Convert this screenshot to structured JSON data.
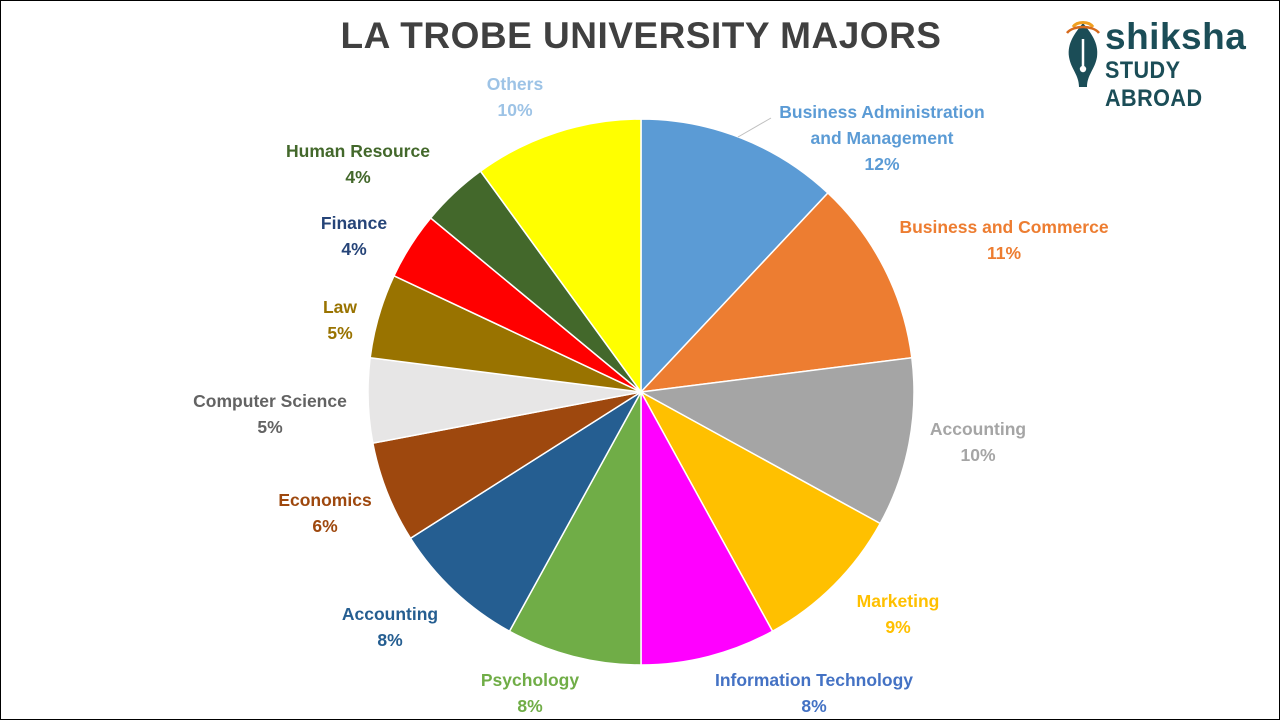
{
  "title": "LA TROBE UNIVERSITY MAJORS",
  "logo": {
    "brand": "shiksha",
    "subtitle": "STUDY ABROAD",
    "color": "#1b4d57"
  },
  "chart_data": {
    "type": "pie",
    "title": "LA TROBE UNIVERSITY MAJORS",
    "start": "12 o'clock",
    "direction": "clockwise",
    "legend": "none",
    "slices": [
      {
        "label": "Business Administration and Management",
        "label_lines": [
          "Business Administration",
          "and Management"
        ],
        "value": 12,
        "pct_text": "12%",
        "color": "#5b9bd5",
        "label_color": "#5b9bd5"
      },
      {
        "label": "Business and Commerce",
        "label_lines": [
          "Business and Commerce"
        ],
        "value": 11,
        "pct_text": "11%",
        "color": "#ed7d31",
        "label_color": "#ed7d31"
      },
      {
        "label": "Accounting",
        "label_lines": [
          "Accounting"
        ],
        "value": 10,
        "pct_text": "10%",
        "color": "#a5a5a5",
        "label_color": "#a5a5a5"
      },
      {
        "label": "Marketing",
        "label_lines": [
          "Marketing"
        ],
        "value": 9,
        "pct_text": "9%",
        "color": "#ffc000",
        "label_color": "#ffc000"
      },
      {
        "label": "Information Technology",
        "label_lines": [
          "Information Technology"
        ],
        "value": 8,
        "pct_text": "8%",
        "color": "#ff00ff",
        "label_color": "#4472c4"
      },
      {
        "label": "Psychology",
        "label_lines": [
          "Psychology"
        ],
        "value": 8,
        "pct_text": "8%",
        "color": "#70ad47",
        "label_color": "#70ad47"
      },
      {
        "label": "Accounting",
        "label_lines": [
          "Accounting"
        ],
        "value": 8,
        "pct_text": "8%",
        "color": "#255e91",
        "label_color": "#255e91"
      },
      {
        "label": "Economics",
        "label_lines": [
          "Economics"
        ],
        "value": 6,
        "pct_text": "6%",
        "color": "#9e480e",
        "label_color": "#9e480e"
      },
      {
        "label": "Computer Science",
        "label_lines": [
          "Computer Science"
        ],
        "value": 5,
        "pct_text": "5%",
        "color": "#e7e6e6",
        "label_color": "#636363"
      },
      {
        "label": "Law",
        "label_lines": [
          "Law"
        ],
        "value": 5,
        "pct_text": "5%",
        "color": "#997300",
        "label_color": "#997300"
      },
      {
        "label": "Finance",
        "label_lines": [
          "Finance"
        ],
        "value": 4,
        "pct_text": "4%",
        "color": "#ff0000",
        "label_color": "#264478"
      },
      {
        "label": "Human Resource",
        "label_lines": [
          "Human Resource"
        ],
        "value": 4,
        "pct_text": "4%",
        "color": "#43682b",
        "label_color": "#43682b"
      },
      {
        "label": "Others",
        "label_lines": [
          "Others"
        ],
        "value": 10,
        "pct_text": "10%",
        "color": "#ffff00",
        "label_color": "#9dc3e6"
      }
    ]
  }
}
